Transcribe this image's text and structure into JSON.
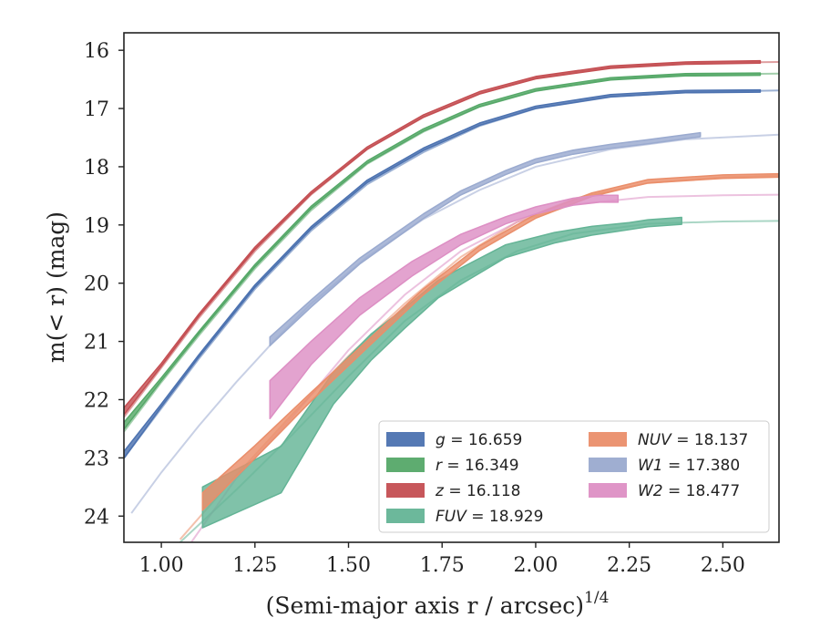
{
  "chart_data": {
    "type": "line",
    "xlabel": "(Semi-major axis r / arcsec)",
    "xlabel_exponent": "1/4",
    "ylabel": "m(< r) (mag)",
    "xlim": [
      0.9,
      2.65
    ],
    "ylim": [
      24.45,
      15.7
    ],
    "y_inverted": true,
    "grid": false,
    "legend_position": "lower-right",
    "xticks": [
      1.0,
      1.25,
      1.5,
      1.75,
      2.0,
      2.25,
      2.5
    ],
    "xtick_labels": [
      "1.00",
      "1.25",
      "1.50",
      "1.75",
      "2.00",
      "2.25",
      "2.50"
    ],
    "yticks": [
      16,
      17,
      18,
      19,
      20,
      21,
      22,
      23,
      24
    ],
    "ytick_labels": [
      "16",
      "17",
      "18",
      "19",
      "20",
      "21",
      "22",
      "23",
      "24"
    ],
    "series": [
      {
        "name": "g = 16.659",
        "var": "g",
        "val": "= 16.659",
        "color": "#4c72b0",
        "model_x": [
          0.9,
          1.0,
          1.1,
          1.25,
          1.4,
          1.55,
          1.7,
          1.85,
          2.0,
          2.2,
          2.4,
          2.65
        ],
        "model_y": [
          23.0,
          22.15,
          21.3,
          20.1,
          19.1,
          18.3,
          17.75,
          17.3,
          17.0,
          16.8,
          16.72,
          16.69
        ],
        "band_x": [
          0.9,
          1.0,
          1.1,
          1.25,
          1.4,
          1.55,
          1.7,
          1.85,
          2.0,
          2.2,
          2.4,
          2.6
        ],
        "band_y": [
          22.95,
          22.1,
          21.25,
          20.05,
          19.05,
          18.25,
          17.7,
          17.27,
          16.98,
          16.78,
          16.71,
          16.7
        ],
        "band_w": [
          0.12,
          0.05,
          0.04,
          0.04,
          0.04,
          0.04,
          0.04,
          0.04,
          0.04,
          0.04,
          0.04,
          0.04
        ]
      },
      {
        "name": "r = 16.349",
        "var": "r",
        "val": "= 16.349",
        "color": "#55a868",
        "model_x": [
          0.9,
          1.0,
          1.1,
          1.25,
          1.4,
          1.55,
          1.7,
          1.85,
          2.0,
          2.2,
          2.4,
          2.65
        ],
        "model_y": [
          22.55,
          21.7,
          20.9,
          19.75,
          18.75,
          17.95,
          17.4,
          16.97,
          16.7,
          16.5,
          16.42,
          16.4
        ],
        "band_x": [
          0.9,
          1.0,
          1.1,
          1.25,
          1.4,
          1.55,
          1.7,
          1.85,
          2.0,
          2.2,
          2.4,
          2.6
        ],
        "band_y": [
          22.45,
          21.65,
          20.85,
          19.7,
          18.7,
          17.92,
          17.37,
          16.95,
          16.68,
          16.49,
          16.42,
          16.41
        ],
        "band_w": [
          0.12,
          0.05,
          0.04,
          0.04,
          0.04,
          0.04,
          0.04,
          0.04,
          0.04,
          0.04,
          0.04,
          0.04
        ]
      },
      {
        "name": "z = 16.118",
        "var": "z",
        "val": "= 16.118",
        "color": "#c44e52",
        "model_x": [
          0.9,
          1.0,
          1.1,
          1.25,
          1.4,
          1.55,
          1.7,
          1.85,
          2.0,
          2.2,
          2.4,
          2.65
        ],
        "model_y": [
          22.3,
          21.45,
          20.6,
          19.45,
          18.48,
          17.7,
          17.15,
          16.75,
          16.48,
          16.3,
          16.22,
          16.2
        ],
        "band_x": [
          0.9,
          1.0,
          1.1,
          1.25,
          1.4,
          1.55,
          1.7,
          1.85,
          2.0,
          2.2,
          2.4,
          2.6
        ],
        "band_y": [
          22.2,
          21.4,
          20.55,
          19.4,
          18.45,
          17.68,
          17.13,
          16.73,
          16.47,
          16.29,
          16.22,
          16.2
        ],
        "band_w": [
          0.12,
          0.05,
          0.04,
          0.04,
          0.04,
          0.04,
          0.04,
          0.04,
          0.04,
          0.04,
          0.04,
          0.04
        ]
      },
      {
        "name": "FUV = 18.929",
        "var": "FUV",
        "val": "= 18.929",
        "color": "#64b496",
        "model_x": [
          1.05,
          1.2,
          1.35,
          1.5,
          1.65,
          1.8,
          1.95,
          2.1,
          2.3,
          2.5,
          2.65
        ],
        "model_y": [
          24.45,
          23.55,
          22.6,
          21.6,
          20.65,
          19.95,
          19.45,
          19.15,
          18.98,
          18.94,
          18.93
        ],
        "band_x": [
          1.11,
          1.32,
          1.46,
          1.56,
          1.65,
          1.74,
          1.8,
          1.92,
          2.05,
          2.15,
          2.25,
          2.3,
          2.39
        ],
        "band_y": [
          23.85,
          23.2,
          21.8,
          21.1,
          20.6,
          20.1,
          19.88,
          19.45,
          19.22,
          19.1,
          19.02,
          18.97,
          18.93
        ],
        "band_w": [
          0.7,
          0.8,
          0.55,
          0.45,
          0.35,
          0.3,
          0.28,
          0.22,
          0.18,
          0.15,
          0.12,
          0.12,
          0.12
        ]
      },
      {
        "name": "NUV = 18.137",
        "var": "NUV",
        "val": "= 18.137",
        "color": "#ea8e6a",
        "model_x": [
          1.05,
          1.2,
          1.35,
          1.5,
          1.65,
          1.8,
          1.95,
          2.1,
          2.3,
          2.5,
          2.65
        ],
        "model_y": [
          24.4,
          23.3,
          22.25,
          21.25,
          20.35,
          19.55,
          18.95,
          18.55,
          18.28,
          18.18,
          18.15
        ],
        "band_x": [
          1.11,
          1.25,
          1.4,
          1.55,
          1.7,
          1.85,
          2.0,
          2.15,
          2.3,
          2.5,
          2.65
        ],
        "band_y": [
          23.75,
          22.9,
          21.95,
          21.05,
          20.15,
          19.4,
          18.85,
          18.48,
          18.25,
          18.17,
          18.15
        ],
        "band_w": [
          0.3,
          0.22,
          0.15,
          0.12,
          0.1,
          0.08,
          0.07,
          0.06,
          0.06,
          0.06,
          0.06
        ]
      },
      {
        "name": "W1 = 17.380",
        "var": "W1",
        "val": "= 17.380",
        "color": "#9aaacf",
        "model_x": [
          0.92,
          1.0,
          1.1,
          1.2,
          1.3,
          1.4,
          1.55,
          1.7,
          1.85,
          2.0,
          2.2,
          2.4,
          2.65
        ],
        "model_y": [
          23.95,
          23.25,
          22.45,
          21.7,
          21.0,
          20.35,
          19.55,
          18.9,
          18.4,
          18.0,
          17.7,
          17.53,
          17.45
        ],
        "band_x": [
          1.29,
          1.4,
          1.53,
          1.7,
          1.8,
          1.92,
          2.0,
          2.1,
          2.2,
          2.3,
          2.44
        ],
        "band_y": [
          21.0,
          20.35,
          19.62,
          18.85,
          18.45,
          18.1,
          17.9,
          17.75,
          17.65,
          17.57,
          17.45
        ],
        "band_w": [
          0.15,
          0.12,
          0.1,
          0.08,
          0.07,
          0.07,
          0.07,
          0.07,
          0.07,
          0.07,
          0.07
        ]
      },
      {
        "name": "W2 = 18.477",
        "var": "W2",
        "val": "= 18.477",
        "color": "#dd8fc4",
        "model_x": [
          1.08,
          1.2,
          1.35,
          1.5,
          1.65,
          1.8,
          1.95,
          2.1,
          2.3,
          2.5,
          2.65
        ],
        "model_y": [
          24.45,
          23.35,
          22.3,
          21.15,
          20.2,
          19.45,
          18.95,
          18.65,
          18.52,
          18.49,
          18.48
        ],
        "band_x": [
          1.29,
          1.4,
          1.53,
          1.67,
          1.8,
          1.92,
          2.0,
          2.1,
          2.17,
          2.22
        ],
        "band_y": [
          22.0,
          21.2,
          20.4,
          19.75,
          19.25,
          18.92,
          18.75,
          18.6,
          18.55,
          18.55
        ],
        "band_w": [
          0.65,
          0.4,
          0.3,
          0.25,
          0.18,
          0.12,
          0.12,
          0.12,
          0.12,
          0.12
        ]
      }
    ]
  }
}
